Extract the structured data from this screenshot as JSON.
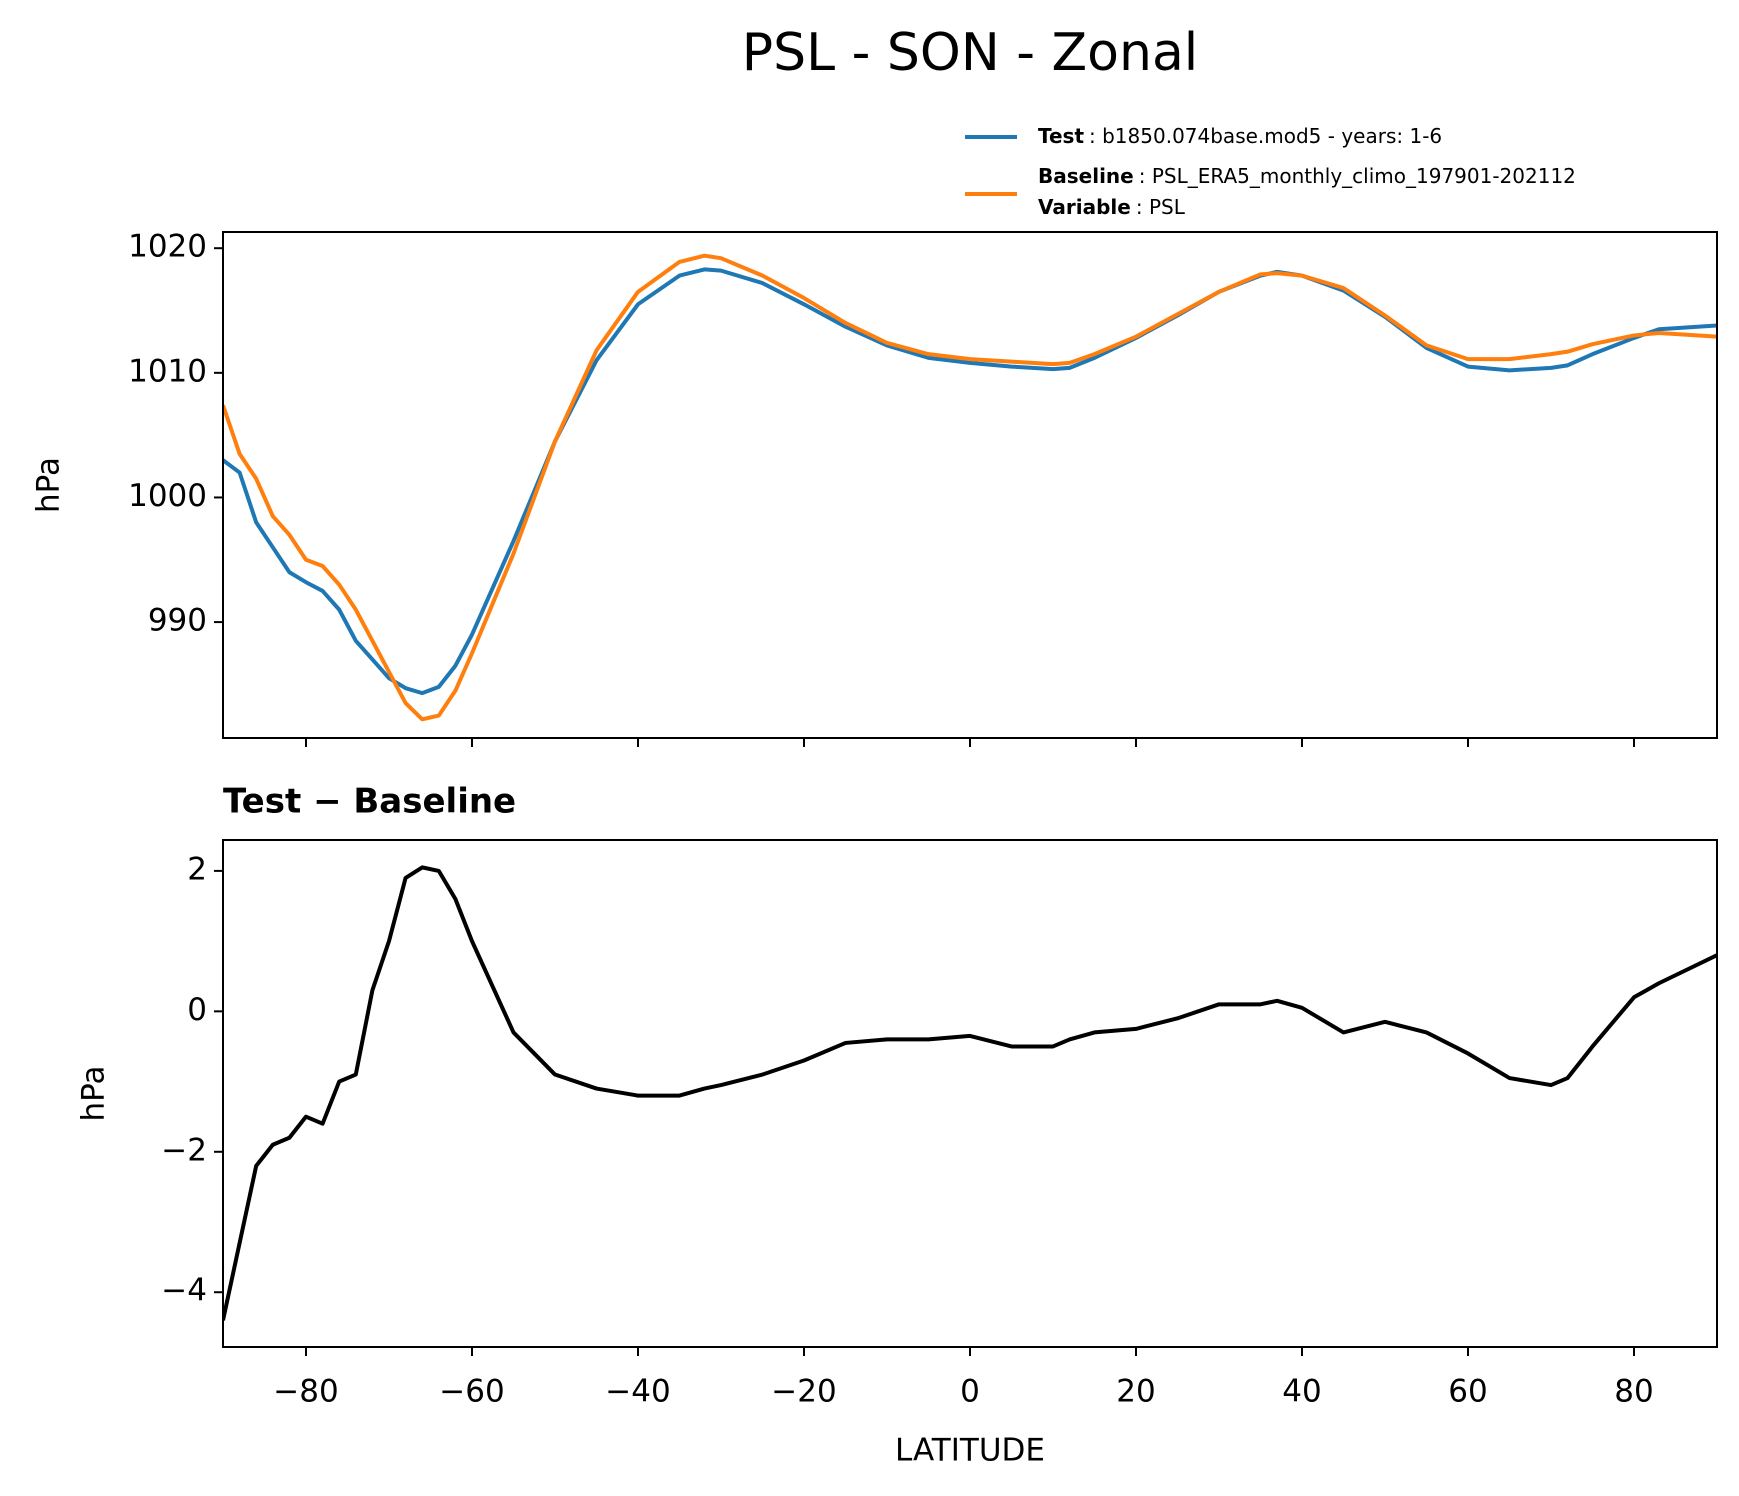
{
  "title": "PSL - SON - Zonal",
  "chart_data": [
    {
      "type": "line",
      "x": [
        -90,
        -88,
        -86,
        -84,
        -82,
        -80,
        -78,
        -76,
        -74,
        -72,
        -70,
        -68,
        -66,
        -64,
        -62,
        -60,
        -55,
        -50,
        -45,
        -40,
        -35,
        -32,
        -30,
        -25,
        -20,
        -15,
        -10,
        -5,
        0,
        5,
        10,
        12,
        15,
        20,
        25,
        30,
        35,
        37,
        40,
        45,
        50,
        55,
        60,
        65,
        70,
        72,
        75,
        80,
        83,
        90
      ],
      "series": [
        {
          "name": "Test",
          "description": ": b1850.074base.mod5 - years: 1-6",
          "color": "#1f77b4",
          "values": [
            1003,
            1002,
            998,
            996,
            994,
            993.2,
            992.5,
            991,
            988.5,
            987,
            985.5,
            984.7,
            984.3,
            984.8,
            986.5,
            989,
            996.5,
            1004.5,
            1011,
            1015.5,
            1017.8,
            1018.3,
            1018.2,
            1017.2,
            1015.5,
            1013.7,
            1012.2,
            1011.2,
            1010.8,
            1010.5,
            1010.3,
            1010.4,
            1011.2,
            1012.8,
            1014.6,
            1016.5,
            1017.8,
            1018.1,
            1017.8,
            1016.6,
            1014.5,
            1012,
            1010.5,
            1010.2,
            1010.4,
            1010.6,
            1011.5,
            1012.8,
            1013.5,
            1013.8
          ]
        },
        {
          "name": "Baseline",
          "description": ": PSL_ERA5_monthly_climo_197901-202112",
          "extra_name": "Variable",
          "extra_description": ": PSL",
          "color": "#ff7f0e",
          "values": [
            1007.4,
            1003.5,
            1001.5,
            998.5,
            997,
            995,
            994.5,
            993,
            991,
            988.5,
            986,
            983.5,
            982.2,
            982.5,
            984.5,
            987.5,
            995.5,
            1004.5,
            1011.8,
            1016.5,
            1018.9,
            1019.4,
            1019.2,
            1017.8,
            1016,
            1014,
            1012.4,
            1011.5,
            1011.1,
            1010.9,
            1010.7,
            1010.8,
            1011.5,
            1012.9,
            1014.7,
            1016.5,
            1017.9,
            1018,
            1017.8,
            1016.8,
            1014.6,
            1012.2,
            1011.1,
            1011.1,
            1011.5,
            1011.7,
            1012.3,
            1013,
            1013.2,
            1012.9
          ]
        }
      ],
      "ylabel": "hPa",
      "xlim": [
        -90,
        90
      ],
      "xticks": [
        -80,
        -60,
        -40,
        -20,
        0,
        20,
        40,
        60,
        80
      ],
      "show_xtick_labels": false,
      "ylim": [
        980.7,
        1021.3
      ],
      "yticks": [
        990,
        1000,
        1010,
        1020
      ]
    },
    {
      "type": "line",
      "title": "Test − Baseline",
      "x": [
        -90,
        -88,
        -86,
        -84,
        -82,
        -80,
        -78,
        -76,
        -74,
        -72,
        -70,
        -68,
        -66,
        -64,
        -62,
        -60,
        -55,
        -50,
        -45,
        -40,
        -35,
        -32,
        -30,
        -25,
        -20,
        -15,
        -10,
        -5,
        0,
        5,
        10,
        12,
        15,
        20,
        25,
        30,
        35,
        37,
        40,
        45,
        50,
        55,
        60,
        65,
        70,
        72,
        75,
        80,
        83,
        90
      ],
      "series": [
        {
          "color": "#000000",
          "values": [
            -4.4,
            -3.3,
            -2.2,
            -1.9,
            -1.8,
            -1.5,
            -1.6,
            -1.0,
            -0.9,
            0.3,
            1.0,
            1.9,
            2.05,
            2.0,
            1.6,
            1.0,
            -0.3,
            -0.9,
            -1.1,
            -1.2,
            -1.2,
            -1.1,
            -1.05,
            -0.9,
            -0.7,
            -0.45,
            -0.4,
            -0.4,
            -0.35,
            -0.5,
            -0.5,
            -0.4,
            -0.3,
            -0.25,
            -0.1,
            0.1,
            0.1,
            0.15,
            0.05,
            -0.3,
            -0.15,
            -0.3,
            -0.6,
            -0.95,
            -1.05,
            -0.95,
            -0.5,
            0.2,
            0.4,
            0.8
          ]
        }
      ],
      "ylabel": "hPa",
      "xlabel": "LATITUDE",
      "xlim": [
        -90,
        90
      ],
      "xticks": [
        {
          "value": -80,
          "label": "−80"
        },
        {
          "value": -60,
          "label": "−60"
        },
        {
          "value": -40,
          "label": "−40"
        },
        {
          "value": -20,
          "label": "−20"
        },
        0,
        20,
        40,
        60,
        80
      ],
      "show_xtick_labels": true,
      "ylim": [
        -4.78,
        2.44
      ],
      "yticks": [
        {
          "value": -4,
          "label": "−4"
        },
        {
          "value": -2,
          "label": "−2"
        },
        0,
        2
      ]
    }
  ]
}
